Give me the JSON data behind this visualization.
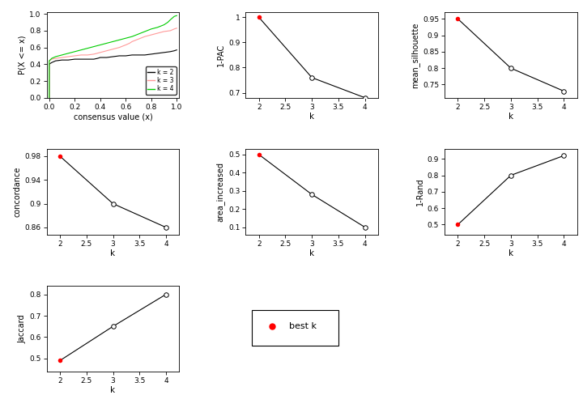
{
  "ecdf": {
    "k2": {
      "x": [
        0.0,
        0.0,
        0.02,
        0.05,
        0.1,
        0.15,
        0.2,
        0.25,
        0.3,
        0.35,
        0.38,
        0.4,
        0.45,
        0.5,
        0.55,
        0.6,
        0.65,
        0.7,
        0.75,
        0.8,
        0.85,
        0.9,
        0.95,
        0.98,
        1.0
      ],
      "y": [
        0.0,
        0.4,
        0.42,
        0.44,
        0.45,
        0.45,
        0.46,
        0.46,
        0.46,
        0.46,
        0.47,
        0.48,
        0.48,
        0.49,
        0.5,
        0.5,
        0.51,
        0.51,
        0.51,
        0.52,
        0.53,
        0.54,
        0.55,
        0.56,
        0.57
      ],
      "color": "#000000"
    },
    "k3": {
      "x": [
        0.0,
        0.0,
        0.02,
        0.05,
        0.1,
        0.15,
        0.2,
        0.25,
        0.3,
        0.35,
        0.4,
        0.45,
        0.5,
        0.55,
        0.6,
        0.63,
        0.65,
        0.7,
        0.75,
        0.8,
        0.85,
        0.9,
        0.95,
        0.98,
        1.0
      ],
      "y": [
        0.0,
        0.44,
        0.46,
        0.47,
        0.48,
        0.49,
        0.5,
        0.51,
        0.51,
        0.52,
        0.54,
        0.56,
        0.58,
        0.6,
        0.63,
        0.65,
        0.67,
        0.7,
        0.73,
        0.75,
        0.77,
        0.79,
        0.8,
        0.82,
        0.83
      ],
      "color": "#FF9999"
    },
    "k4": {
      "x": [
        0.0,
        0.0,
        0.02,
        0.05,
        0.1,
        0.15,
        0.2,
        0.25,
        0.3,
        0.35,
        0.4,
        0.45,
        0.5,
        0.55,
        0.6,
        0.65,
        0.7,
        0.75,
        0.8,
        0.85,
        0.9,
        0.93,
        0.95,
        0.98,
        1.0
      ],
      "y": [
        0.0,
        0.44,
        0.47,
        0.49,
        0.51,
        0.53,
        0.55,
        0.57,
        0.59,
        0.61,
        0.63,
        0.65,
        0.67,
        0.69,
        0.71,
        0.73,
        0.76,
        0.79,
        0.82,
        0.84,
        0.87,
        0.9,
        0.93,
        0.97,
        0.98
      ],
      "color": "#00CC00"
    }
  },
  "pac": {
    "k": [
      2,
      3,
      4
    ],
    "values": [
      1.0,
      0.76,
      0.68
    ],
    "best_k": 2,
    "ylim": [
      0.68,
      1.02
    ],
    "yticks": [
      0.7,
      0.8,
      0.9,
      1.0
    ],
    "ylabel": "1-PAC"
  },
  "silhouette": {
    "k": [
      2,
      3,
      4
    ],
    "values": [
      0.95,
      0.8,
      0.73
    ],
    "best_k": 2,
    "ylim": [
      0.71,
      0.97
    ],
    "yticks": [
      0.75,
      0.8,
      0.85,
      0.9,
      0.95
    ],
    "ylabel": "mean_silhouette"
  },
  "concordance": {
    "k": [
      2,
      3,
      4
    ],
    "values": [
      0.98,
      0.9,
      0.86
    ],
    "best_k": 2,
    "ylim": [
      0.848,
      0.992
    ],
    "yticks": [
      0.86,
      0.9,
      0.94,
      0.98
    ],
    "ylabel": "concordance"
  },
  "area_increased": {
    "k": [
      2,
      3,
      4
    ],
    "values": [
      0.5,
      0.28,
      0.1
    ],
    "best_k": 2,
    "ylim": [
      0.06,
      0.53
    ],
    "yticks": [
      0.1,
      0.2,
      0.3,
      0.4,
      0.5
    ],
    "ylabel": "area_increased"
  },
  "rand": {
    "k": [
      2,
      3,
      4
    ],
    "values": [
      0.5,
      0.8,
      0.92
    ],
    "best_k": 2,
    "ylim": [
      0.44,
      0.96
    ],
    "yticks": [
      0.5,
      0.6,
      0.7,
      0.8,
      0.9
    ],
    "ylabel": "1-Rand"
  },
  "jaccard": {
    "k": [
      2,
      3,
      4
    ],
    "values": [
      0.49,
      0.65,
      0.8
    ],
    "best_k": 2,
    "ylim": [
      0.44,
      0.84
    ],
    "yticks": [
      0.5,
      0.6,
      0.7,
      0.8
    ],
    "ylabel": "Jaccard"
  },
  "ecdf_xlim": [
    -0.02,
    1.02
  ],
  "ecdf_ylim": [
    0.0,
    1.02
  ],
  "ecdf_xticks": [
    0.0,
    0.2,
    0.4,
    0.6,
    0.8,
    1.0
  ],
  "ecdf_yticks": [
    0.0,
    0.2,
    0.4,
    0.6,
    0.8,
    1.0
  ],
  "legend_labels": [
    "k = 2",
    "k = 3",
    "k = 4"
  ],
  "legend_colors": [
    "#000000",
    "#FF9999",
    "#00CC00"
  ],
  "background_color": "#ffffff"
}
